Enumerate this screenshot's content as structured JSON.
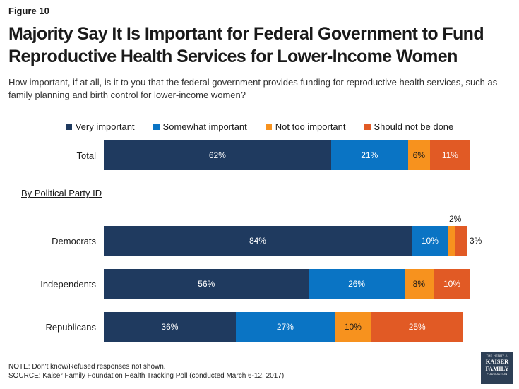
{
  "figure_label": "Figure 10",
  "title": "Majority Say It Is Important for Federal Government to Fund Reproductive Health Services for Lower-Income Women",
  "subtitle": "How important, if at all, is it to you that the federal government provides funding for reproductive health services, such as family planning and birth control for lower-income women?",
  "section_label": "By Political Party ID",
  "note": "NOTE: Don't know/Refused responses not shown.",
  "source": "SOURCE: Kaiser Family Foundation Health Tracking Poll (conducted March 6-12, 2017)",
  "logo": {
    "line1": "THE HENRY J.",
    "line2": "KAISER",
    "line3": "FAMILY",
    "line4": "FOUNDATION"
  },
  "colors": {
    "very": "#1f3a5f",
    "somewhat": "#0a74c4",
    "not_too": "#f7921e",
    "should_not": "#e15a25"
  },
  "chart_data": {
    "type": "bar",
    "orientation": "horizontal",
    "stacked": true,
    "xlim": [
      0,
      100
    ],
    "legend_position": "top",
    "categories": [
      "Total",
      "Democrats",
      "Independents",
      "Republicans"
    ],
    "series": [
      {
        "name": "Very important",
        "values": [
          62,
          84,
          56,
          36
        ]
      },
      {
        "name": "Somewhat important",
        "values": [
          21,
          10,
          26,
          27
        ]
      },
      {
        "name": "Not too important",
        "values": [
          6,
          2,
          8,
          10
        ]
      },
      {
        "name": "Should not be done",
        "values": [
          11,
          3,
          10,
          25
        ]
      }
    ],
    "labels": [
      [
        "62%",
        "21%",
        "6%",
        "11%"
      ],
      [
        "84%",
        "10%",
        "2%",
        "3%"
      ],
      [
        "56%",
        "26%",
        "8%",
        "10%"
      ],
      [
        "36%",
        "27%",
        "10%",
        "25%"
      ]
    ]
  }
}
